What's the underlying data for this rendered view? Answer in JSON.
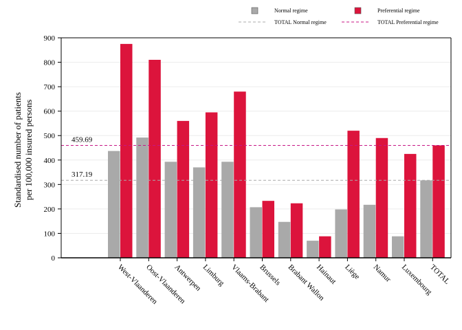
{
  "chart_data": {
    "type": "bar",
    "ylabel": "Standardised number of patients\nper 100,000 insured persons",
    "ylim": [
      0,
      900
    ],
    "yticks": [
      0,
      100,
      200,
      300,
      400,
      500,
      600,
      700,
      800,
      900
    ],
    "grid": true,
    "legend_position": "top-right",
    "categories": [
      "West-Vlaanderen",
      "Oost-Vlaanderen",
      "Antwerpen",
      "Limburg",
      "Vlaams-Brabant",
      "Brussels",
      "Brabant Wallon",
      "Hainaut",
      "Liège",
      "Namur",
      "Luxembourg",
      "TOTAL"
    ],
    "series": [
      {
        "name": "Normal regime",
        "color": "#a9a9a9",
        "values": [
          437,
          492,
          393,
          370,
          393,
          207,
          147,
          70,
          198,
          217,
          88,
          317
        ]
      },
      {
        "name": "Preferential regime",
        "color": "#dc143c",
        "values": [
          875,
          810,
          560,
          595,
          680,
          233,
          223,
          88,
          520,
          490,
          425,
          460
        ]
      }
    ],
    "reference_lines": [
      {
        "name": "TOTAL Normal regime",
        "value": 317.19,
        "label": "317.19",
        "color": "#a9a9a9"
      },
      {
        "name": "TOTAL Preferential regime",
        "value": 459.69,
        "label": "459.69",
        "color": "#c71585"
      }
    ]
  }
}
